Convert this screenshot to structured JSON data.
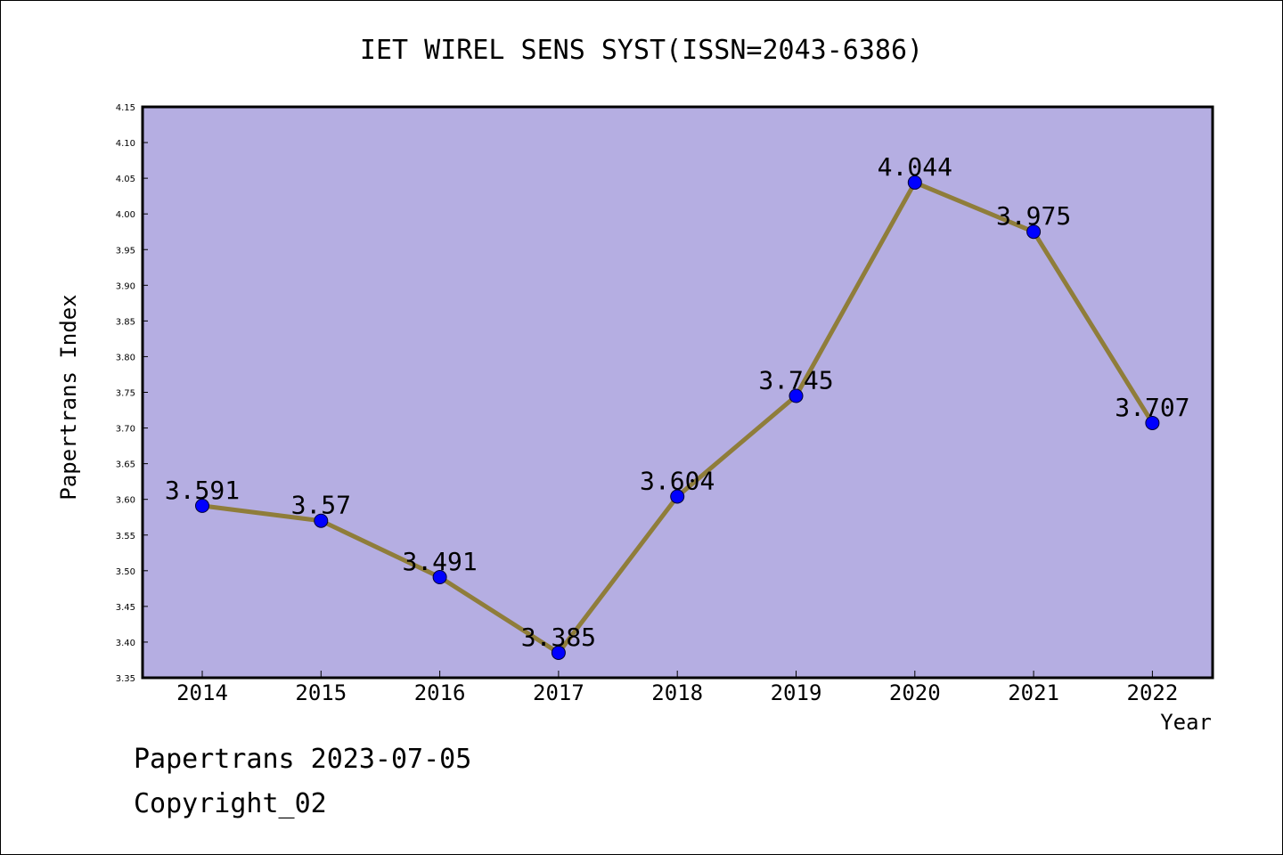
{
  "chart_data": {
    "type": "line",
    "title": "IET WIREL SENS SYST(ISSN=2043-6386)",
    "xlabel": "Year",
    "ylabel": "Papertrans Index",
    "categories": [
      "2014",
      "2015",
      "2016",
      "2017",
      "2018",
      "2019",
      "2020",
      "2021",
      "2022"
    ],
    "values": [
      3.591,
      3.57,
      3.491,
      3.385,
      3.604,
      3.745,
      4.044,
      3.975,
      3.707
    ],
    "data_labels": [
      "3.591",
      "3.57",
      "3.491",
      "3.385",
      "3.604",
      "3.745",
      "4.044",
      "3.975",
      "3.707"
    ],
    "ylim": [
      3.35,
      4.15
    ],
    "yticks": [
      "3.35",
      "3.40",
      "3.45",
      "3.50",
      "3.55",
      "3.60",
      "3.65",
      "3.70",
      "3.75",
      "3.80",
      "3.85",
      "3.90",
      "3.95",
      "4.00",
      "4.05",
      "4.10",
      "4.15"
    ],
    "grid": false,
    "legend": "none",
    "colors": {
      "plot_background": "#b5aee2",
      "line": "#8f7d3a",
      "marker": "#0000ff"
    }
  },
  "footer": {
    "line1": "Papertrans 2023-07-05",
    "line2": "Copyright_02"
  }
}
